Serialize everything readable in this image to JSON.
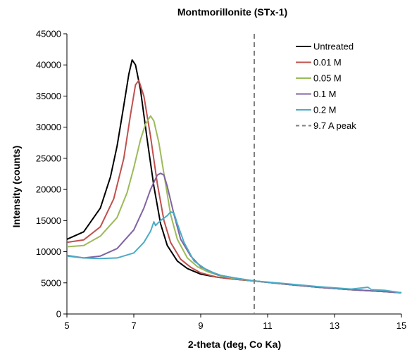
{
  "chart_data": {
    "type": "line",
    "title": "Montmorillonite (STx-1)",
    "xlabel": "2-theta (deg, Co Ka)",
    "ylabel": "Intensity (counts)",
    "xlim": [
      5,
      15
    ],
    "ylim": [
      0,
      45000
    ],
    "xticks": [
      5,
      7,
      9,
      11,
      13,
      15
    ],
    "yticks": [
      0,
      5000,
      10000,
      15000,
      20000,
      25000,
      30000,
      35000,
      40000,
      45000
    ],
    "grid": false,
    "legend_position": "top-right",
    "series": [
      {
        "name": "Untreated",
        "color": "#000000",
        "style": "solid",
        "x": [
          5.0,
          5.5,
          6.0,
          6.3,
          6.5,
          6.7,
          6.85,
          6.95,
          7.05,
          7.2,
          7.4,
          7.6,
          7.8,
          8.0,
          8.3,
          8.6,
          9.0,
          9.5,
          10.0,
          10.6,
          11.5,
          12.5,
          13.5,
          14.5,
          15.0
        ],
        "y": [
          12000,
          13200,
          17000,
          22000,
          27000,
          33500,
          38500,
          40800,
          40000,
          36000,
          28000,
          20500,
          14500,
          11000,
          8500,
          7300,
          6400,
          5900,
          5600,
          5300,
          4800,
          4300,
          3900,
          3600,
          3400
        ]
      },
      {
        "name": "0.01 M",
        "color": "#c0504d",
        "style": "solid",
        "x": [
          5.0,
          5.5,
          6.0,
          6.4,
          6.7,
          6.9,
          7.05,
          7.15,
          7.3,
          7.5,
          7.7,
          7.9,
          8.1,
          8.4,
          8.7,
          9.0,
          9.5,
          10.0,
          10.6,
          11.5,
          12.5,
          13.5,
          14.5,
          15.0
        ],
        "y": [
          11500,
          11900,
          14000,
          18500,
          25000,
          32000,
          36800,
          37500,
          35000,
          28500,
          21000,
          15000,
          11500,
          8800,
          7500,
          6600,
          5900,
          5600,
          5300,
          4800,
          4300,
          3900,
          3600,
          3400
        ]
      },
      {
        "name": "0.05 M",
        "color": "#9bbb59",
        "style": "solid",
        "x": [
          5.0,
          5.5,
          6.0,
          6.5,
          6.8,
          7.0,
          7.2,
          7.35,
          7.5,
          7.6,
          7.75,
          7.9,
          8.1,
          8.3,
          8.6,
          8.9,
          9.2,
          9.6,
          10.0,
          10.6,
          11.5,
          12.5,
          13.5,
          14.5,
          15.0
        ],
        "y": [
          10800,
          11000,
          12500,
          15500,
          19500,
          23500,
          28000,
          30500,
          31800,
          31000,
          27500,
          22500,
          16000,
          12000,
          9000,
          7600,
          6800,
          6100,
          5700,
          5300,
          4800,
          4300,
          3900,
          3600,
          3400
        ]
      },
      {
        "name": "0.1 M",
        "color": "#8064a2",
        "style": "solid",
        "x": [
          5.0,
          5.5,
          6.0,
          6.5,
          7.0,
          7.3,
          7.5,
          7.7,
          7.8,
          7.9,
          8.0,
          8.2,
          8.4,
          8.7,
          9.0,
          9.5,
          10.0,
          10.6,
          11.5,
          12.5,
          13.5,
          14.5,
          15.0
        ],
        "y": [
          9400,
          9000,
          9300,
          10500,
          13500,
          17000,
          20000,
          22300,
          22600,
          22300,
          20500,
          16000,
          12000,
          9300,
          7600,
          6300,
          5800,
          5300,
          4800,
          4300,
          3900,
          3600,
          3400
        ]
      },
      {
        "name": "0.2 M",
        "color": "#4bacc6",
        "style": "solid",
        "x": [
          5.0,
          5.5,
          6.0,
          6.5,
          7.0,
          7.3,
          7.5,
          7.6,
          7.65,
          7.7,
          7.8,
          8.0,
          8.1,
          8.2,
          8.3,
          8.5,
          8.8,
          9.2,
          9.6,
          10.0,
          10.6,
          11.5,
          12.5,
          13.5,
          14.0,
          14.1,
          14.5,
          15.0
        ],
        "y": [
          9300,
          9000,
          8900,
          9000,
          9800,
          11500,
          13300,
          14800,
          14200,
          14500,
          15000,
          15800,
          16400,
          16200,
          14500,
          11500,
          8500,
          7000,
          6200,
          5800,
          5300,
          4900,
          4400,
          4000,
          4300,
          3900,
          3800,
          3400
        ]
      }
    ],
    "reference_line": {
      "name": "9.7 A peak",
      "x": 10.6,
      "color": "#7f7f7f",
      "style": "dashed"
    }
  }
}
